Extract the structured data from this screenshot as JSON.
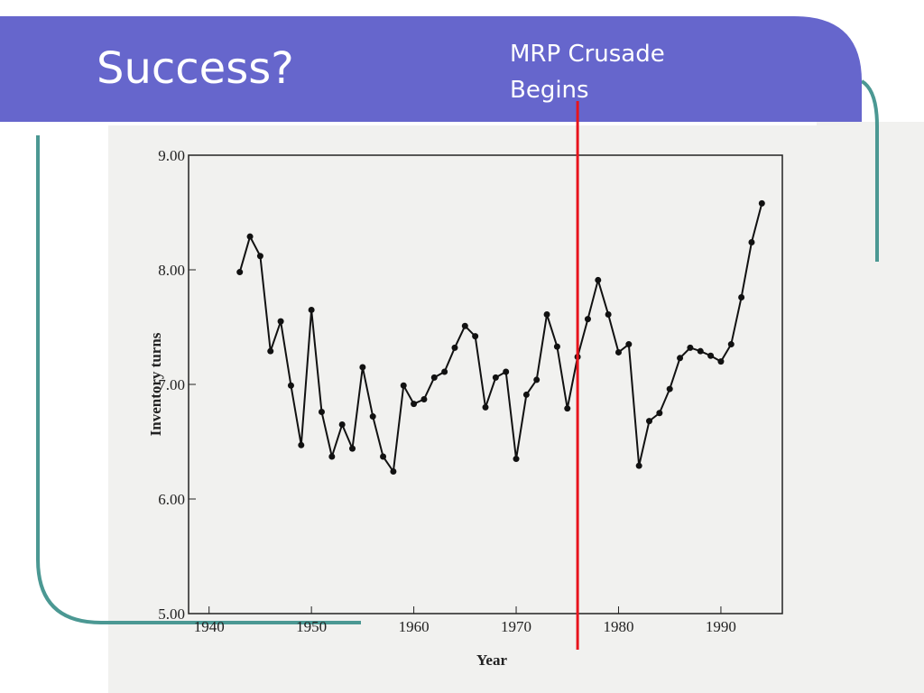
{
  "chart_data": {
    "type": "line",
    "title": "Success?",
    "annotations": [
      {
        "text": "MRP Crusade Begins",
        "x": 1976,
        "color": "#e8141c"
      }
    ],
    "xlabel": "Year",
    "ylabel": "Inventory turns",
    "x": [
      1943,
      1944,
      1945,
      1946,
      1947,
      1948,
      1949,
      1950,
      1951,
      1952,
      1953,
      1954,
      1955,
      1956,
      1957,
      1958,
      1959,
      1960,
      1961,
      1962,
      1963,
      1964,
      1965,
      1966,
      1967,
      1968,
      1969,
      1970,
      1971,
      1972,
      1973,
      1974,
      1975,
      1976,
      1977,
      1978,
      1979,
      1980,
      1981,
      1982,
      1983,
      1984,
      1985,
      1986,
      1987,
      1988,
      1989,
      1990,
      1991,
      1992,
      1993,
      1994
    ],
    "series": [
      {
        "color": "#111111",
        "values": [
          7.98,
          8.29,
          8.12,
          7.29,
          7.55,
          6.99,
          6.47,
          7.65,
          6.76,
          6.37,
          6.65,
          6.44,
          7.15,
          6.72,
          6.37,
          6.24,
          6.99,
          6.83,
          6.87,
          7.06,
          7.11,
          7.32,
          7.51,
          7.42,
          6.8,
          7.06,
          7.11,
          6.35,
          6.91,
          7.04,
          7.61,
          7.33,
          6.79,
          7.24,
          7.57,
          7.91,
          7.61,
          7.28,
          7.35,
          6.29,
          6.68,
          6.75,
          6.96,
          7.23,
          7.32,
          7.29,
          7.25,
          7.2,
          7.35,
          7.76,
          8.24,
          8.58
        ]
      }
    ],
    "xlim": [
      1938,
      1996
    ],
    "xticks": [
      1940,
      1950,
      1960,
      1970,
      1980,
      1990
    ],
    "ylim": [
      5,
      9
    ],
    "yticks": [
      {
        "value": 5,
        "label": "5.00"
      },
      {
        "value": 6,
        "label": "6.00"
      },
      {
        "value": 7,
        "label": "7.00"
      },
      {
        "value": 8,
        "label": "8.00"
      },
      {
        "value": 9,
        "label": "9.00"
      }
    ]
  }
}
